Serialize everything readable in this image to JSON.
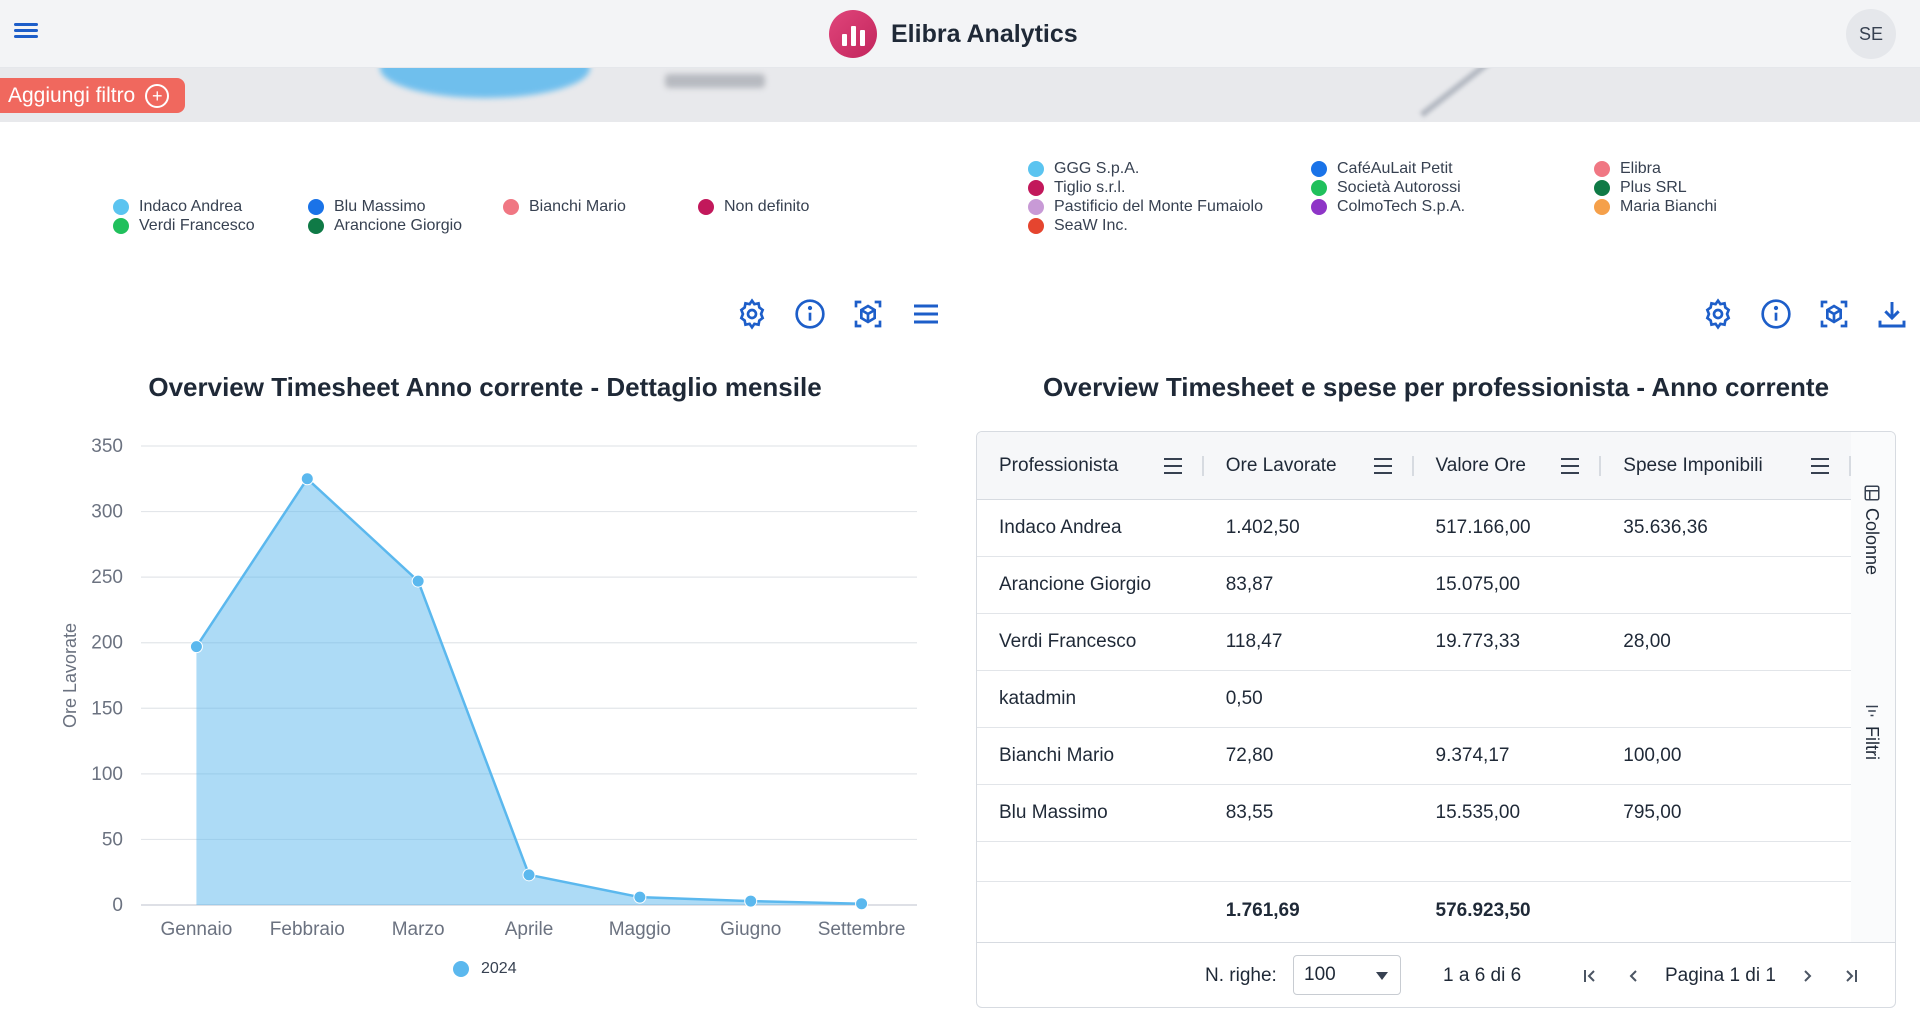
{
  "header": {
    "brand": "Elibra Analytics",
    "avatar_initials": "SE"
  },
  "filterbar": {
    "add_filter_label": "Aggiungi filtro"
  },
  "legend_left": [
    {
      "label": "Indaco Andrea",
      "color": "#5bc4f0"
    },
    {
      "label": "Blu Massimo",
      "color": "#1a73e8"
    },
    {
      "label": "Bianchi Mario",
      "color": "#f07783"
    },
    {
      "label": "Non definito",
      "color": "#c2185b"
    },
    {
      "label": "Verdi Francesco",
      "color": "#20c05c"
    },
    {
      "label": "Arancione Giorgio",
      "color": "#0f7a46"
    }
  ],
  "legend_right": [
    {
      "label": "GGG S.p.A.",
      "color": "#5bc4f0"
    },
    {
      "label": "CaféAuLait Petit",
      "color": "#1a73e8"
    },
    {
      "label": "Elibra",
      "color": "#f07783"
    },
    {
      "label": "Tiglio s.r.l.",
      "color": "#c2185b"
    },
    {
      "label": "Società Autorossi",
      "color": "#20c05c"
    },
    {
      "label": "Plus SRL",
      "color": "#0f7a46"
    },
    {
      "label": "Pastificio del Monte Fumaiolo",
      "color": "#c89ad6"
    },
    {
      "label": "ColmoTech S.p.A.",
      "color": "#8e35c7"
    },
    {
      "label": "Maria Bianchi",
      "color": "#f5a04a"
    },
    {
      "label": "SeaW Inc.",
      "color": "#e5452f"
    }
  ],
  "chart_left": {
    "title": "Overview Timesheet Anno corrente - Dettaglio mensile"
  },
  "chart_data": {
    "type": "area",
    "categories": [
      "Gennaio",
      "Febbraio",
      "Marzo",
      "Aprile",
      "Maggio",
      "Giugno",
      "Settembre"
    ],
    "series": [
      {
        "name": "2024",
        "values": [
          197,
          325,
          247,
          23,
          6,
          3,
          1
        ],
        "color": "#5bb8ee"
      }
    ],
    "ylabel": "Ore Lavorate",
    "ylim": [
      0,
      350
    ],
    "yticks": [
      0,
      50,
      100,
      150,
      200,
      250,
      300,
      350
    ],
    "grid": true,
    "legend": "bottom"
  },
  "table": {
    "title": "Overview Timesheet e spese per professionista - Anno corrente",
    "columns": [
      "Professionista",
      "Ore Lavorate",
      "Valore Ore",
      "Spese Imponibili"
    ],
    "rows": [
      [
        "Indaco Andrea",
        "1.402,50",
        "517.166,00",
        "35.636,36"
      ],
      [
        "Arancione Giorgio",
        "83,87",
        "15.075,00",
        ""
      ],
      [
        "Verdi Francesco",
        "118,47",
        "19.773,33",
        "28,00"
      ],
      [
        "katadmin",
        "0,50",
        "",
        ""
      ],
      [
        "Bianchi Mario",
        "72,80",
        "9.374,17",
        "100,00"
      ],
      [
        "Blu Massimo",
        "83,55",
        "15.535,00",
        "795,00"
      ]
    ],
    "totals": [
      "",
      "1.761,69",
      "576.923,50",
      ""
    ],
    "side_columns": "Colonne",
    "side_filters": "Filtri",
    "footer": {
      "rows_label": "N. righe:",
      "rows_value": "100",
      "range": "1 a 6 di 6",
      "page_info": "Pagina 1 di 1"
    }
  }
}
